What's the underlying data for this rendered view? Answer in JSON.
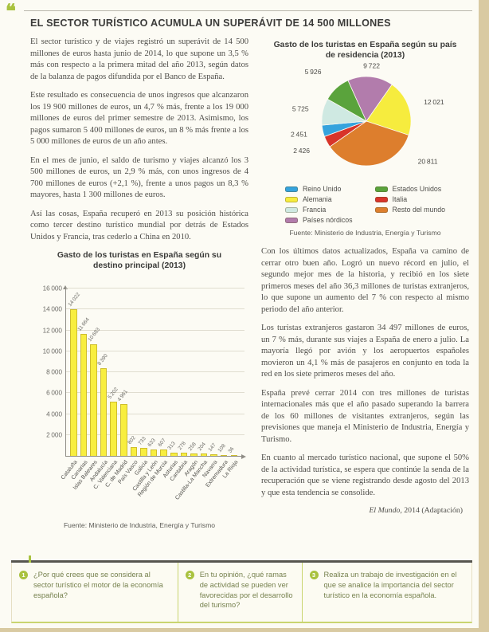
{
  "page": {
    "quote_icon": "❝"
  },
  "article": {
    "title": "EL SECTOR TURÍSTICO ACUMULA UN SUPERÁVIT DE 14 500 MILLONES",
    "left_paragraphs": [
      "El sector turístico y de viajes registró un superávit de 14 500 millones de euros hasta junio de 2014, lo que supone un 3,5 % más con respecto a la primera mitad del año 2013, según datos de la balanza de pagos difundida por el Banco de España.",
      "Este resultado es consecuencia de unos ingresos que alcanzaron los 19 900 millones de euros, un 4,7 % más, frente a los 19 000 millones de euros del primer semestre de 2013. Asimismo, los pagos sumaron 5 400 millones de euros, un 8 % más frente a los 5 000 millones de euros de un año antes.",
      "En el mes de junio, el saldo de turismo y viajes alcanzó los 3 500 millones de euros, un 2,9 % más, con unos ingresos de 4 700 millones de euros (+2,1 %), frente a unos pagos un 8,3 % mayores, hasta 1 300 millones de euros.",
      "Así las cosas, España recuperó en 2013 su posición histórica como tercer destino turístico mundial por detrás de Estados Unidos y Francia, tras cederlo a China en 2010."
    ],
    "right_paragraphs": [
      "Con los últimos datos actualizados, España va camino de cerrar otro buen año. Logró un nuevo récord en julio, el segundo mejor mes de la historia, y recibió en los siete primeros meses del año 36,3 millones de turistas extranjeros, lo que supone un aumento del 7 % con respecto al mismo periodo del año anterior.",
      "Los turistas extranjeros gastaron 34 497 millones de euros, un 7 % más, durante sus viajes a España de enero a julio. La mayoría llegó por avión y los aeropuertos españoles movieron un 4,1 % más de pasajeros en conjunto en toda la red en los siete primeros meses del año.",
      "España prevé cerrar 2014 con tres millones de turistas internacionales más que el año pasado superando la barrera de los 60 millones de visitantes extranjeros, según las previsiones que maneja el Ministerio de Industria, Energía y Turismo.",
      "En cuanto al mercado turístico nacional, que supone el 50% de la actividad turística, se espera que continúe la senda de la recuperación que se viene registrando desde agosto del 2013 y que esta tendencia se consolide."
    ],
    "attribution_source": "El Mundo",
    "attribution_rest": ", 2014 (Adaptación)"
  },
  "chart_data": [
    {
      "type": "pie",
      "title": "Gasto de los turistas en España según su país de residencia (2013)",
      "slices": [
        {
          "label": "Alemania",
          "value": 12021,
          "label_r": 20
        },
        {
          "label": "Resto del mundo",
          "value": 20811,
          "label_angle_deg": 128,
          "label_r": 26
        },
        {
          "label": "Italia",
          "value": 2426,
          "label_r": 24
        },
        {
          "label": "Reino Unido",
          "value": 2451,
          "label_r": 20
        },
        {
          "label": "Francia",
          "value": 5725,
          "label_r": 18
        },
        {
          "label": "Estados Unidos",
          "value": 5926,
          "label_r": 28
        },
        {
          "label": "Países nórdicos",
          "value": 9722,
          "label_r": 14
        }
      ],
      "colors": {
        "Reino Unido": "#35a3dd",
        "Alemania": "#f6ec3e",
        "Francia": "#cfe9e2",
        "Países nórdicos": "#b27cac",
        "Estados Unidos": "#5aa33c",
        "Italia": "#d8342a",
        "Resto del mundo": "#dd7e2d"
      },
      "legend_columns": [
        [
          "Reino Unido",
          "Alemania",
          "Francia",
          "Países nórdicos"
        ],
        [
          "Estados Unidos",
          "Italia",
          "Resto del mundo"
        ]
      ],
      "start_angle_deg": 35,
      "legend_position": "bottom",
      "source": "Fuente: Ministerio de Industria, Energía y Turismo"
    },
    {
      "type": "bar",
      "title": "Gasto de los turistas en España según su destino principal (2013)",
      "categories": [
        "Cataluña",
        "Canarias",
        "Islas Baleares",
        "Andalucía",
        "C. Valenciana",
        "C. de Madrid",
        "País Vasco",
        "Galicia",
        "Castilla y León",
        "Región de Murcia",
        "Asturias",
        "Cantabria",
        "Aragón",
        "Castilla-La Mancha",
        "Navarra",
        "Extremadura",
        "La Rioja"
      ],
      "values": [
        14022,
        11664,
        10683,
        8390,
        5202,
        4961,
        802,
        733,
        633,
        607,
        313,
        278,
        258,
        204,
        147,
        108,
        36
      ],
      "xlabel": "",
      "ylabel": "",
      "ylim": [
        0,
        16000
      ],
      "ytick_step": 2000,
      "grid": true,
      "bar_color": "#f8ee3f",
      "source": "Fuente: Ministerio de Industria, Energía y Turismo"
    }
  ],
  "questions": [
    {
      "number": "1",
      "text": "¿Por qué crees que se considera al sector turístico el motor de la economía española?"
    },
    {
      "number": "2",
      "text": "En tu opinión, ¿qué ramas de actividad se pueden ver favorecidas por el desarrollo del turismo?"
    },
    {
      "number": "3",
      "text": "Realiza un trabajo de investigación en el que se analice la importancia del sector turístico en la economía española."
    }
  ],
  "colors": {
    "accent_green": "#a9c23f",
    "divider_green": "#c9d56f",
    "dark_rule": "#56554f",
    "title_text": "#3b3b39",
    "body_text": "#4e4d49",
    "question_text": "#76814e"
  }
}
